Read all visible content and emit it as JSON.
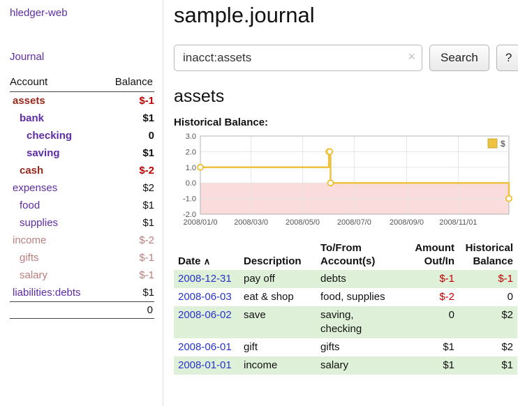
{
  "palette": {
    "purple": "#5e2ca5",
    "dark_red": "#96281b",
    "bright_red": "#c00000",
    "muted_red": "#bc7d7e",
    "black": "#111111",
    "link_blue": "#2733cc",
    "row_green": "#dff0d8",
    "chart_gold": "#edc240",
    "chart_neg_bg": "#fbdcdc"
  },
  "sidebar": {
    "app_title": "hledger-web",
    "nav_journal": "Journal",
    "accounts_table": {
      "headers": [
        "Account",
        "Balance"
      ],
      "rows": [
        {
          "name": "assets",
          "indent": 0,
          "bold": true,
          "name_color": "dark_red",
          "balance": "$-1",
          "balance_color": "bright_red"
        },
        {
          "name": "bank",
          "indent": 1,
          "bold": true,
          "name_color": "purple",
          "balance": "$1",
          "balance_color": "black"
        },
        {
          "name": "checking",
          "indent": 2,
          "bold": true,
          "name_color": "purple",
          "balance": "0",
          "balance_color": "black"
        },
        {
          "name": "saving",
          "indent": 2,
          "bold": true,
          "name_color": "purple",
          "balance": "$1",
          "balance_color": "black"
        },
        {
          "name": "cash",
          "indent": 1,
          "bold": true,
          "name_color": "dark_red",
          "balance": "$-2",
          "balance_color": "bright_red"
        },
        {
          "name": "expenses",
          "indent": 0,
          "bold": false,
          "name_color": "purple",
          "balance": "$2",
          "balance_color": "black"
        },
        {
          "name": "food",
          "indent": 1,
          "bold": false,
          "name_color": "purple",
          "balance": "$1",
          "balance_color": "black"
        },
        {
          "name": "supplies",
          "indent": 1,
          "bold": false,
          "name_color": "purple",
          "balance": "$1",
          "balance_color": "black"
        },
        {
          "name": "income",
          "indent": 0,
          "bold": false,
          "name_color": "muted_red",
          "balance": "$-2",
          "balance_color": "muted_red"
        },
        {
          "name": "gifts",
          "indent": 1,
          "bold": false,
          "name_color": "muted_red",
          "balance": "$-1",
          "balance_color": "muted_red"
        },
        {
          "name": "salary",
          "indent": 1,
          "bold": false,
          "name_color": "muted_red",
          "balance": "$-1",
          "balance_color": "muted_red"
        },
        {
          "name": "liabilities:debts",
          "indent": 0,
          "bold": false,
          "name_color": "purple",
          "balance": "$1",
          "balance_color": "black"
        }
      ],
      "total": "0"
    }
  },
  "main": {
    "title": "sample.journal",
    "search": {
      "value": "inacct:assets",
      "clear_icon": "×",
      "button_label": "Search",
      "help_label": "?"
    },
    "section_title": "assets",
    "chart_label": "Historical Balance:",
    "register_table": {
      "headers": [
        "Date",
        "Description",
        "To/From Account(s)",
        "Amount Out/In",
        "Historical Balance"
      ],
      "sort_indicator": "∧",
      "rows": [
        {
          "date": "2008-12-31",
          "description": "pay off",
          "accounts": "debts",
          "amount": "$-1",
          "amount_neg": true,
          "balance": "$-1",
          "balance_neg": true,
          "shaded": true
        },
        {
          "date": "2008-06-03",
          "description": "eat & shop",
          "accounts": "food, supplies",
          "amount": "$-2",
          "amount_neg": true,
          "balance": "0",
          "balance_neg": false,
          "shaded": false
        },
        {
          "date": "2008-06-02",
          "description": "save",
          "accounts": "saving,\nchecking",
          "amount": "0",
          "amount_neg": false,
          "balance": "$2",
          "balance_neg": false,
          "shaded": true
        },
        {
          "date": "2008-06-01",
          "description": "gift",
          "accounts": "gifts",
          "amount": "$1",
          "amount_neg": false,
          "balance": "$2",
          "balance_neg": false,
          "shaded": false
        },
        {
          "date": "2008-01-01",
          "description": "income",
          "accounts": "salary",
          "amount": "$1",
          "amount_neg": false,
          "balance": "$1",
          "balance_neg": false,
          "shaded": true
        }
      ]
    }
  },
  "chart_data": {
    "type": "line",
    "style": "step",
    "title": "Historical Balance:",
    "series": [
      {
        "name": "$",
        "color_key": "chart_gold",
        "points": [
          {
            "x": "2008-01-01",
            "y": 1
          },
          {
            "x": "2008-06-01",
            "y": 2
          },
          {
            "x": "2008-06-02",
            "y": 2
          },
          {
            "x": "2008-06-03",
            "y": 0
          },
          {
            "x": "2008-12-31",
            "y": -1
          }
        ]
      }
    ],
    "x_range": [
      "2008-01-01",
      "2008-12-31"
    ],
    "ylim": [
      -2,
      3
    ],
    "y_ticks": [
      3.0,
      2.0,
      1.0,
      0.0,
      -1.0,
      -2.0
    ],
    "x_ticks": [
      {
        "date": "2008-01-01",
        "label": "2008/01/0"
      },
      {
        "date": "2008-03-01",
        "label": "2008/03/0"
      },
      {
        "date": "2008-05-01",
        "label": "2008/05/0"
      },
      {
        "date": "2008-07-01",
        "label": "2008/07/0"
      },
      {
        "date": "2008-09-01",
        "label": "2008/09/0"
      },
      {
        "date": "2008-11-01",
        "label": "2008/11/01"
      }
    ],
    "legend": {
      "label": "$",
      "position": "top-right"
    },
    "negative_region_shaded": true,
    "grid": true
  }
}
